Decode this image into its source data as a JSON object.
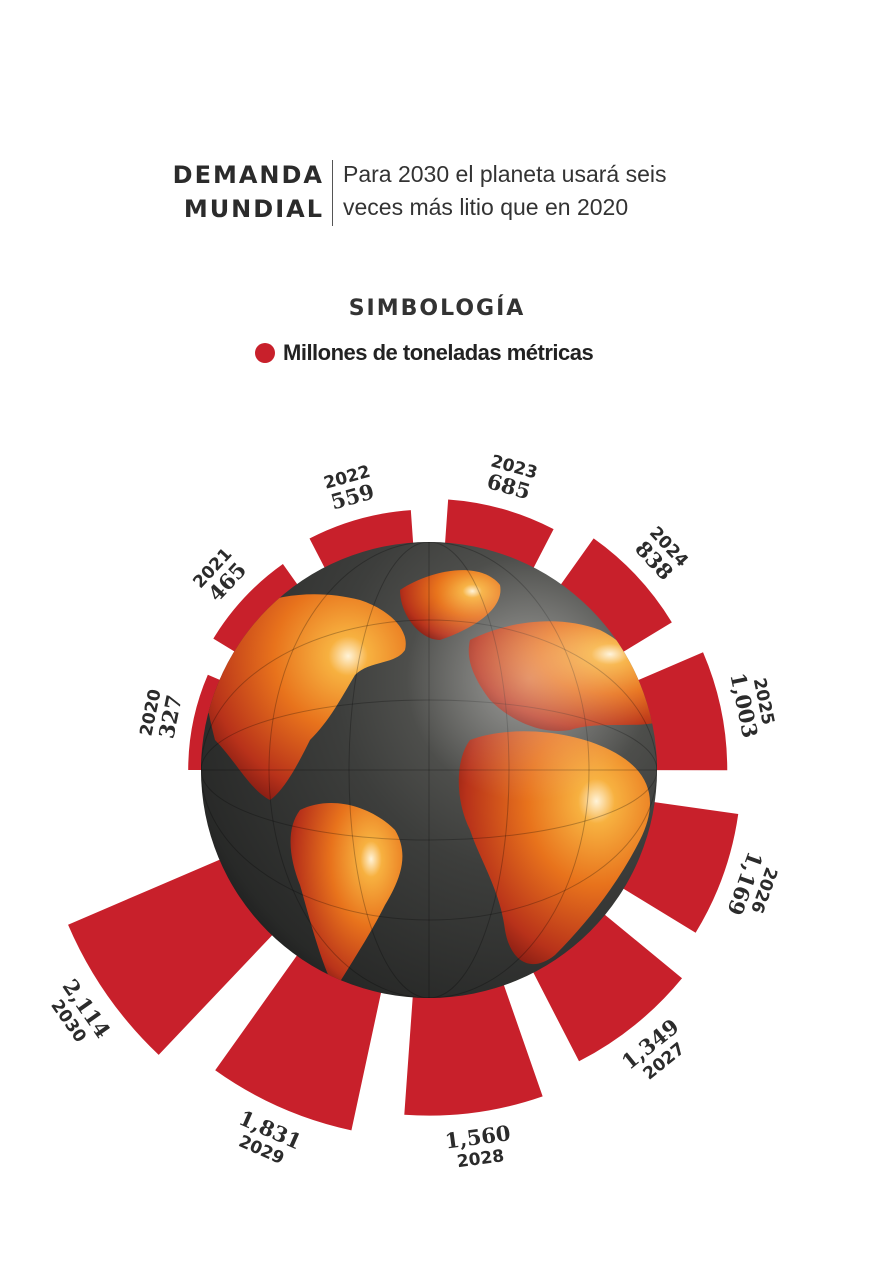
{
  "header": {
    "title_line1": "DEMANDA",
    "title_line2": "MUNDIAL",
    "subtitle_line1": "Para 2030 el planeta usará seis",
    "subtitle_line2": "veces más litio que en 2020"
  },
  "legend": {
    "title": "SIMBOLOGÍA",
    "item": "Millones de toneladas métricas",
    "color": "#c8202b"
  },
  "chart_data": {
    "type": "bar",
    "layout": "radial",
    "categories": [
      "2020",
      "2021",
      "2022",
      "2023",
      "2024",
      "2025",
      "2026",
      "2027",
      "2028",
      "2029",
      "2030"
    ],
    "values": [
      327,
      465,
      559,
      685,
      838,
      1003,
      1169,
      1349,
      1560,
      1831,
      2114
    ],
    "value_labels": [
      "327",
      "465",
      "559",
      "685",
      "838",
      "1,003",
      "1,169",
      "1,349",
      "1,560",
      "1,831",
      "2,114"
    ],
    "series": [
      {
        "name": "Millones de toneladas métricas",
        "values": [
          327,
          465,
          559,
          685,
          838,
          1003,
          1169,
          1349,
          1560,
          1831,
          2114
        ]
      }
    ],
    "bar_color": "#c8202b",
    "center_image": "globe"
  }
}
